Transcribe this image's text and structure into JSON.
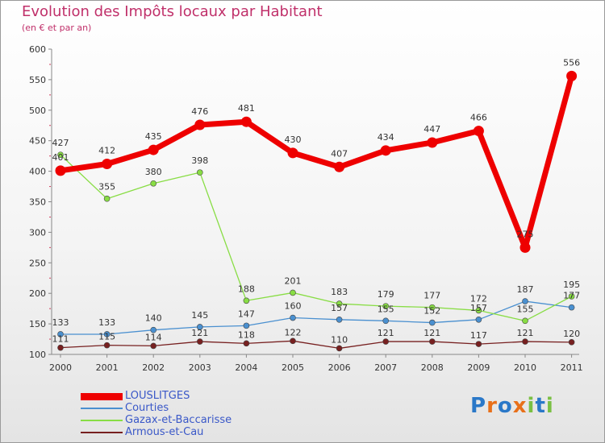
{
  "header": {
    "title": "Evolution des Impôts locaux par Habitant",
    "subtitle": "(en € et par an)"
  },
  "chart_data": {
    "type": "line",
    "title": "Evolution des Impôts locaux par Habitant",
    "subtitle": "(en € et par an)",
    "xlabel": "",
    "ylabel": "",
    "ylim": [
      100,
      600
    ],
    "y_ticks": [
      100,
      150,
      200,
      250,
      300,
      350,
      400,
      450,
      500,
      550,
      600
    ],
    "grid": false,
    "legend_position": "bottom-left",
    "categories": [
      "2000",
      "2001",
      "2002",
      "2003",
      "2004",
      "2005",
      "2006",
      "2007",
      "2008",
      "2009",
      "2010",
      "2011"
    ],
    "series": [
      {
        "name": "LOUSLITGES",
        "color": "#ee0000",
        "emphasis": true,
        "values": [
          401,
          412,
          435,
          476,
          481,
          430,
          407,
          434,
          447,
          466,
          275,
          556
        ]
      },
      {
        "name": "Courties",
        "color": "#4a90d0",
        "emphasis": false,
        "values": [
          133,
          133,
          140,
          145,
          147,
          160,
          157,
          155,
          152,
          157,
          187,
          177
        ]
      },
      {
        "name": "Gazax-et-Baccarisse",
        "color": "#88dd44",
        "emphasis": false,
        "values": [
          427,
          355,
          380,
          398,
          188,
          201,
          183,
          179,
          177,
          172,
          155,
          195
        ]
      },
      {
        "name": "Armous-et-Cau",
        "color": "#772020",
        "emphasis": false,
        "values": [
          111,
          115,
          114,
          121,
          118,
          122,
          110,
          121,
          121,
          117,
          121,
          120
        ]
      }
    ]
  },
  "logo": {
    "letters": [
      "P",
      "r",
      "o",
      "x",
      "i",
      "t",
      "i"
    ],
    "colors": [
      "#2a78c8",
      "#e8701a",
      "#2a78c8",
      "#e8701a",
      "#7ac043",
      "#2a78c8",
      "#7ac043"
    ]
  }
}
